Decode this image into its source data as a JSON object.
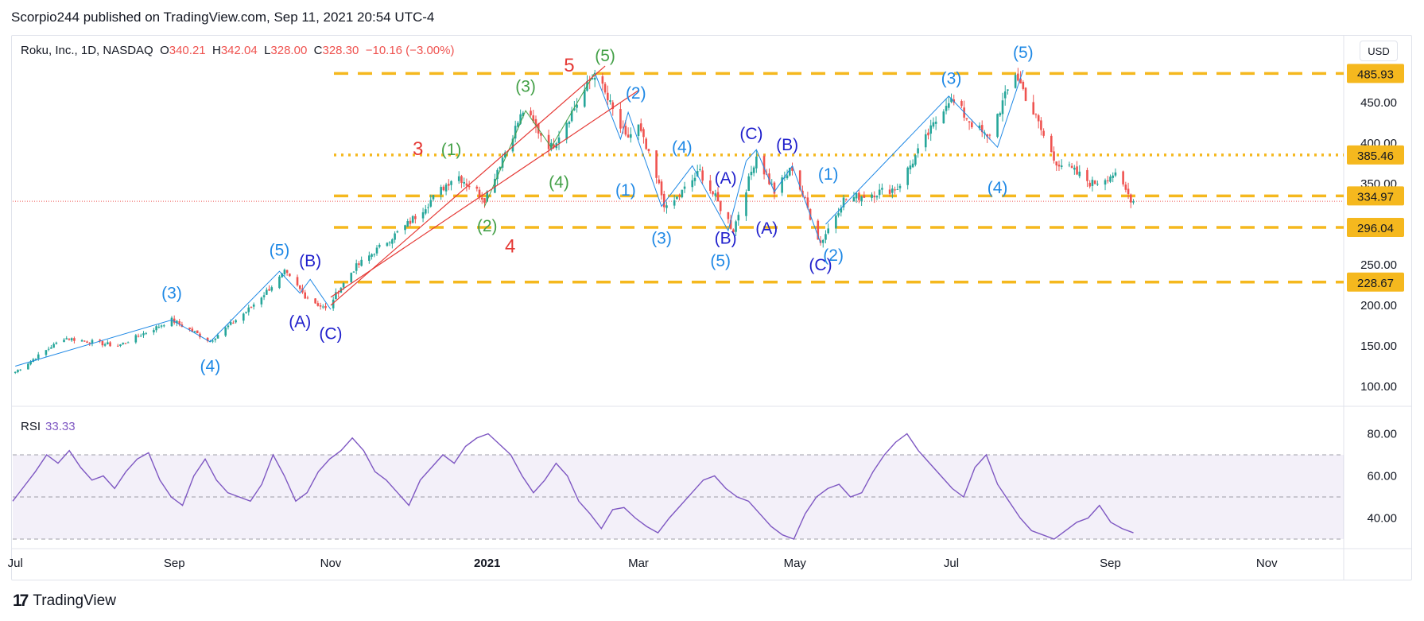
{
  "header": {
    "published": "Scorpio244 published on TradingView.com, Sep 11, 2021 20:54 UTC-4"
  },
  "legend": {
    "symbol": "Roku, Inc., 1D, NASDAQ",
    "o_label": "O",
    "o_value": "340.21",
    "h_label": "H",
    "h_value": "342.04",
    "l_label": "L",
    "l_value": "328.00",
    "c_label": "C",
    "c_value": "328.30",
    "change": "−10.16 (−3.00%)"
  },
  "currency": "USD",
  "rsi": {
    "label": "RSI",
    "value": "33.33"
  },
  "footer": {
    "brand": "TradingView"
  },
  "colors": {
    "up": "#26a69a",
    "down": "#ef5350",
    "level": "#f5b81e",
    "rsi": "#7e57c2",
    "blue_wave": "#1e88e5",
    "navy_wave": "#1a237e",
    "green_wave": "#43a047",
    "red_wave": "#e53935"
  },
  "chart_data": [
    {
      "type": "candlestick",
      "title": "Roku, Inc., 1D, NASDAQ",
      "ylim": [
        80,
        500
      ],
      "y_ticks": [
        "100.00",
        "150.00",
        "200.00",
        "250.00",
        "300.00",
        "350.00",
        "400.00",
        "450.00"
      ],
      "x_ticks": [
        "Jul",
        "Sep",
        "Nov",
        "2021",
        "Mar",
        "May",
        "Jul",
        "Sep",
        "Nov"
      ],
      "approx_close_path": [
        {
          "date": "2020-07-01",
          "close": 118
        },
        {
          "date": "2020-07-20",
          "close": 160
        },
        {
          "date": "2020-08-10",
          "close": 150
        },
        {
          "date": "2020-08-31",
          "close": 182
        },
        {
          "date": "2020-09-15",
          "close": 156
        },
        {
          "date": "2020-09-30",
          "close": 195
        },
        {
          "date": "2020-10-14",
          "close": 240
        },
        {
          "date": "2020-10-22",
          "close": 212
        },
        {
          "date": "2020-10-30",
          "close": 195
        },
        {
          "date": "2020-11-10",
          "close": 245
        },
        {
          "date": "2020-12-01",
          "close": 300
        },
        {
          "date": "2020-12-20",
          "close": 362
        },
        {
          "date": "2020-12-31",
          "close": 332
        },
        {
          "date": "2021-01-15",
          "close": 440
        },
        {
          "date": "2021-01-26",
          "close": 395
        },
        {
          "date": "2021-02-12",
          "close": 487
        },
        {
          "date": "2021-02-24",
          "close": 405
        },
        {
          "date": "2021-03-01",
          "close": 420
        },
        {
          "date": "2021-03-12",
          "close": 318
        },
        {
          "date": "2021-03-25",
          "close": 365
        },
        {
          "date": "2021-04-07",
          "close": 293
        },
        {
          "date": "2021-04-16",
          "close": 385
        },
        {
          "date": "2021-04-23",
          "close": 340
        },
        {
          "date": "2021-04-30",
          "close": 370
        },
        {
          "date": "2021-05-11",
          "close": 277
        },
        {
          "date": "2021-05-20",
          "close": 330
        },
        {
          "date": "2021-06-10",
          "close": 345
        },
        {
          "date": "2021-06-30",
          "close": 455
        },
        {
          "date": "2021-07-15",
          "close": 405
        },
        {
          "date": "2021-07-26",
          "close": 487
        },
        {
          "date": "2021-08-10",
          "close": 380
        },
        {
          "date": "2021-08-25",
          "close": 350
        },
        {
          "date": "2021-09-02",
          "close": 362
        },
        {
          "date": "2021-09-10",
          "close": 328.3
        }
      ],
      "last_price": 328.3,
      "price_levels": [
        {
          "value": 485.93,
          "label": "485.93",
          "style": "dashed"
        },
        {
          "value": 385.46,
          "label": "385.46",
          "style": "dotted"
        },
        {
          "value": 334.97,
          "label": "334.97",
          "style": "dashed"
        },
        {
          "value": 296.04,
          "label": "296.04",
          "style": "dashed"
        },
        {
          "value": 228.67,
          "label": "228.67",
          "style": "dashed"
        }
      ],
      "wave_labels": [
        {
          "text": "(3)",
          "date": "2020-08-31",
          "price": 215,
          "color": "blue",
          "where": "above"
        },
        {
          "text": "(4)",
          "date": "2020-09-15",
          "price": 125,
          "color": "blue",
          "where": "below"
        },
        {
          "text": "(5)",
          "date": "2020-10-12",
          "price": 268,
          "color": "blue",
          "where": "above"
        },
        {
          "text": "(A)",
          "date": "2020-10-20",
          "price": 180,
          "color": "navy",
          "where": "below"
        },
        {
          "text": "(B)",
          "date": "2020-10-24",
          "price": 255,
          "color": "navy",
          "where": "above"
        },
        {
          "text": "(C)",
          "date": "2020-11-01",
          "price": 165,
          "color": "navy",
          "where": "below"
        },
        {
          "text": "(1)",
          "date": "2020-12-18",
          "price": 392,
          "color": "green",
          "where": "above"
        },
        {
          "text": "(2)",
          "date": "2021-01-01",
          "price": 298,
          "color": "green",
          "where": "below"
        },
        {
          "text": "(3)",
          "date": "2021-01-16",
          "price": 470,
          "color": "green",
          "where": "above"
        },
        {
          "text": "(4)",
          "date": "2021-01-29",
          "price": 352,
          "color": "green",
          "where": "below"
        },
        {
          "text": "(5)",
          "date": "2021-02-16",
          "price": 508,
          "color": "green",
          "where": "above"
        },
        {
          "text": "3",
          "date": "2020-12-05",
          "price": 392,
          "color": "red",
          "where": "above"
        },
        {
          "text": "4",
          "date": "2021-01-10",
          "price": 272,
          "color": "red",
          "where": "below"
        },
        {
          "text": "5",
          "date": "2021-02-02",
          "price": 495,
          "color": "red",
          "where": "above"
        },
        {
          "text": "(2)",
          "date": "2021-02-28",
          "price": 462,
          "color": "blue",
          "where": "above"
        },
        {
          "text": "(1)",
          "date": "2021-02-24",
          "price": 342,
          "color": "blue",
          "where": "below"
        },
        {
          "text": "(3)",
          "date": "2021-03-10",
          "price": 283,
          "color": "blue",
          "where": "below"
        },
        {
          "text": "(4)",
          "date": "2021-03-18",
          "price": 395,
          "color": "blue",
          "where": "above"
        },
        {
          "text": "(5)",
          "date": "2021-04-02",
          "price": 255,
          "color": "blue",
          "where": "below"
        },
        {
          "text": "(A)",
          "date": "2021-04-04",
          "price": 357,
          "color": "navy",
          "where": "above"
        },
        {
          "text": "(B)",
          "date": "2021-04-04",
          "price": 283,
          "color": "navy",
          "where": "below"
        },
        {
          "text": "(C)",
          "date": "2021-04-14",
          "price": 412,
          "color": "navy",
          "where": "above"
        },
        {
          "text": "(A)",
          "date": "2021-04-20",
          "price": 295,
          "color": "navy",
          "where": "below"
        },
        {
          "text": "(B)",
          "date": "2021-04-28",
          "price": 398,
          "color": "navy",
          "where": "above"
        },
        {
          "text": "(1)",
          "date": "2021-05-14",
          "price": 362,
          "color": "blue",
          "where": "above"
        },
        {
          "text": "(C)",
          "date": "2021-05-11",
          "price": 250,
          "color": "navy",
          "where": "below"
        },
        {
          "text": "(2)",
          "date": "2021-05-16",
          "price": 262,
          "color": "blue",
          "where": "below"
        },
        {
          "text": "(3)",
          "date": "2021-07-01",
          "price": 480,
          "color": "blue",
          "where": "above"
        },
        {
          "text": "(4)",
          "date": "2021-07-19",
          "price": 345,
          "color": "blue",
          "where": "below"
        },
        {
          "text": "(5)",
          "date": "2021-07-29",
          "price": 512,
          "color": "blue",
          "where": "above"
        }
      ]
    },
    {
      "type": "line",
      "title": "RSI",
      "ylim": [
        25,
        85
      ],
      "y_ticks": [
        "40.00",
        "60.00",
        "80.00"
      ],
      "bands": [
        30,
        50,
        70
      ],
      "last_value": 33.33,
      "series": [
        {
          "values": [
            48,
            55,
            62,
            70,
            66,
            72,
            64,
            58,
            60,
            54,
            62,
            68,
            71,
            58,
            50,
            46,
            60,
            68,
            58,
            52,
            50,
            48,
            56,
            70,
            60,
            48,
            52,
            62,
            68,
            72,
            78,
            72,
            62,
            58,
            52,
            46,
            58,
            64,
            70,
            66,
            74,
            78,
            80,
            75,
            70,
            60,
            52,
            58,
            66,
            60,
            48,
            42,
            35,
            44,
            45,
            40,
            36,
            33,
            40,
            46,
            52,
            58,
            60,
            54,
            50,
            48,
            42,
            36,
            32,
            30,
            42,
            50,
            54,
            56,
            50,
            52,
            62,
            70,
            76,
            80,
            72,
            66,
            60,
            54,
            50,
            64,
            70,
            56,
            48,
            40,
            34,
            32,
            30,
            34,
            38,
            40,
            46,
            38,
            35,
            33
          ]
        }
      ]
    }
  ]
}
